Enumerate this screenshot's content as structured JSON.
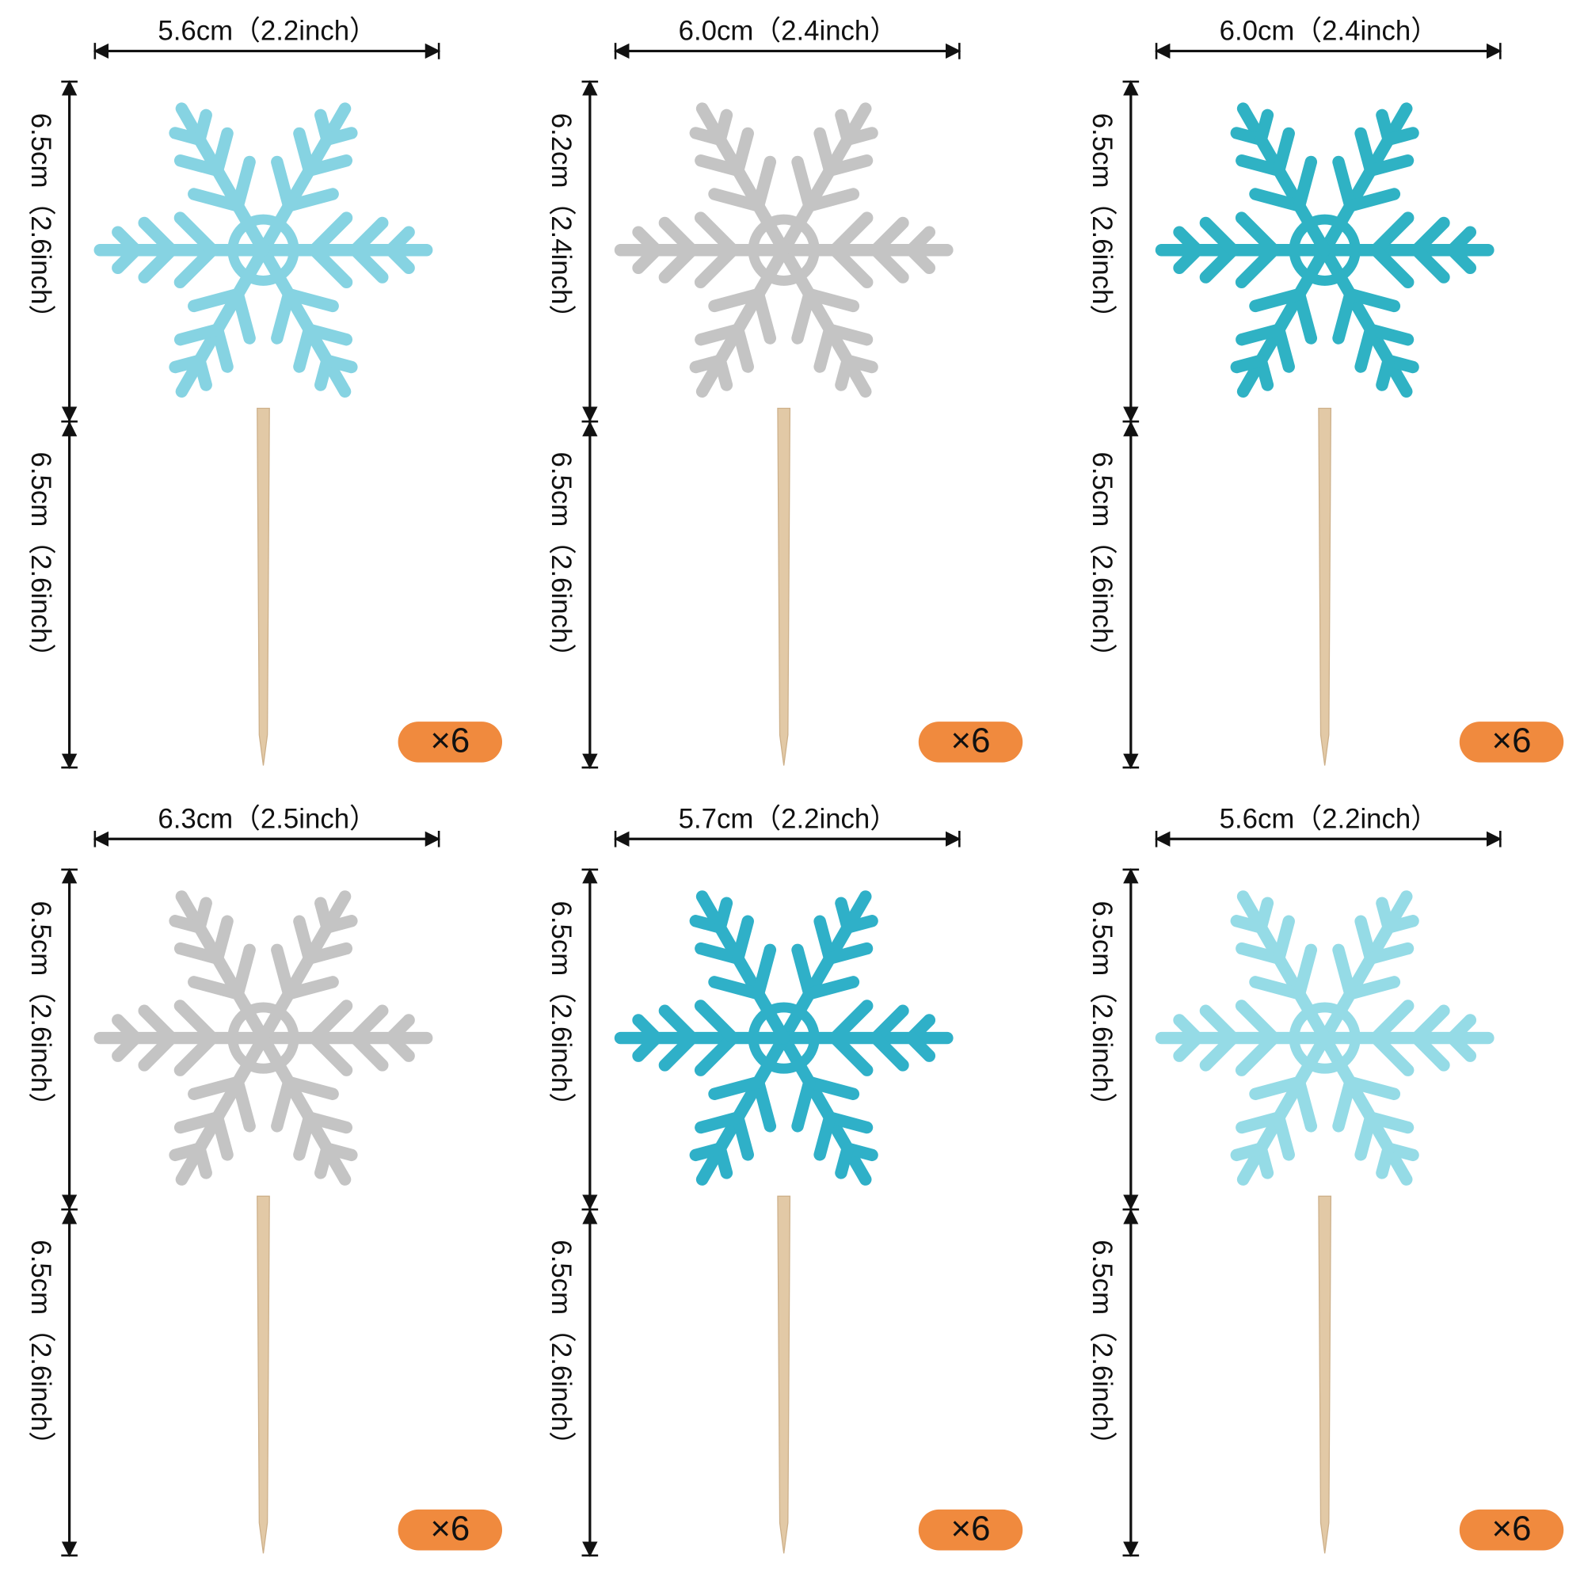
{
  "items": [
    {
      "width_label": "5.6cm（2.2inch）",
      "top_height_label": "6.5cm（2.6inch）",
      "bottom_height_label": "6.5cm（2.6inch）",
      "count_label": "×6",
      "color": "#86d3e2"
    },
    {
      "width_label": "6.0cm（2.4inch）",
      "top_height_label": "6.2cm（2.4inch）",
      "bottom_height_label": "6.5cm（2.6inch）",
      "count_label": "×6",
      "color": "#c4c4c4"
    },
    {
      "width_label": "6.0cm（2.4inch）",
      "top_height_label": "6.5cm（2.6inch）",
      "bottom_height_label": "6.5cm（2.6inch）",
      "count_label": "×6",
      "color": "#2fb2c4"
    },
    {
      "width_label": "6.3cm（2.5inch）",
      "top_height_label": "6.5cm（2.6inch）",
      "bottom_height_label": "6.5cm（2.6inch）",
      "count_label": "×6",
      "color": "#c4c4c4"
    },
    {
      "width_label": "5.7cm（2.2inch）",
      "top_height_label": "6.5cm（2.6inch）",
      "bottom_height_label": "6.5cm（2.6inch）",
      "count_label": "×6",
      "color": "#2fb0c8"
    },
    {
      "width_label": "5.6cm（2.2inch）",
      "top_height_label": "6.5cm（2.6inch）",
      "bottom_height_label": "6.5cm（2.6inch）",
      "count_label": "×6",
      "color": "#95dbe6"
    }
  ]
}
